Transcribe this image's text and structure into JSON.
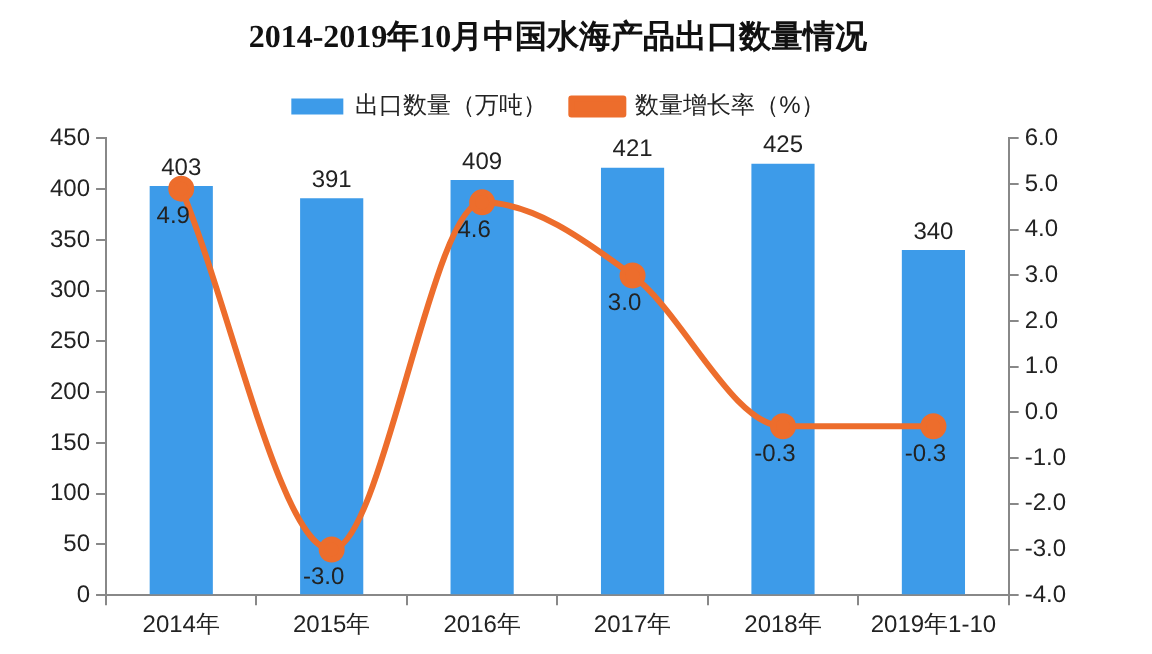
{
  "chart_data": {
    "type": "bar",
    "title": "2014-2019年10月中国水海产品出口数量情况",
    "categories": [
      "2014年",
      "2015年",
      "2016年",
      "2017年",
      "2018年",
      "2019年1-10"
    ],
    "series": [
      {
        "name": "出口数量（万吨）",
        "color": "#3d9be9",
        "values": [
          403,
          391,
          409,
          421,
          425,
          340
        ],
        "value_labels": [
          "403",
          "391",
          "409",
          "421",
          "425",
          "340"
        ]
      },
      {
        "name": "数量增长率（%）",
        "type": "line",
        "axis": "y2",
        "color": "#ed6d2c",
        "values": [
          4.9,
          -3.0,
          4.6,
          3.0,
          -0.3,
          -0.3
        ],
        "value_labels": [
          "4.9",
          "-3.0",
          "4.6",
          "3.0",
          "-0.3",
          "-0.3"
        ]
      }
    ],
    "ylim": [
      0,
      450
    ],
    "yticks": [
      0,
      50,
      100,
      150,
      200,
      250,
      300,
      350,
      400,
      450
    ],
    "y2lim": [
      -4,
      6
    ],
    "y2ticks": [
      {
        "value": -4,
        "label": "-4.0"
      },
      {
        "value": -3,
        "label": "-3.0"
      },
      {
        "value": -2,
        "label": "-2.0"
      },
      {
        "value": -1,
        "label": "-1.0"
      },
      {
        "value": 0,
        "label": "0.0"
      },
      {
        "value": 1,
        "label": "1.0"
      },
      {
        "value": 2,
        "label": "2.0"
      },
      {
        "value": 3,
        "label": "3.0"
      },
      {
        "value": 4,
        "label": "4.0"
      },
      {
        "value": 5,
        "label": "5.0"
      },
      {
        "value": 6,
        "label": "6.0"
      }
    ],
    "legend": "top",
    "grid": false,
    "marker": "circle",
    "line_style": "solid"
  }
}
